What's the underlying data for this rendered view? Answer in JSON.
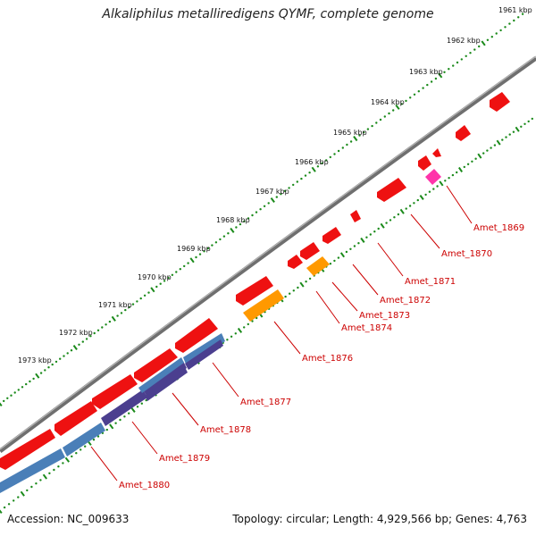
{
  "title": "Alkaliphilus metalliredigens QYMF, complete genome",
  "accession": "Accession: NC_009633",
  "topology": "Topology: circular; Length: 4,929,566 bp; Genes: 4,763",
  "colors": {
    "gene": "#ee1111",
    "gene_alt": "#ff9900",
    "gene_pink": "#ff33aa",
    "cds_blue": "#4a7fb8",
    "cds_purple": "#4b3f8f",
    "scale_ticks": "#1a8a1a",
    "backbone": "#7a7a7a",
    "label": "#cc0000"
  },
  "scale_labels": [
    "1961 kbp",
    "1962 kbp",
    "1963 kbp",
    "1964 kbp",
    "1965 kbp",
    "1966 kbp",
    "1967 kbp",
    "1968 kbp",
    "1969 kbp",
    "1970 kbp",
    "1971 kbp",
    "1972 kbp",
    "1973 kbp"
  ],
  "gene_labels": [
    "Amet_1869",
    "Amet_1870",
    "Amet_1871",
    "Amet_1872",
    "Amet_1873",
    "Amet_1874",
    "Amet_1876",
    "Amet_1877",
    "Amet_1878",
    "Amet_1879",
    "Amet_1880"
  ]
}
